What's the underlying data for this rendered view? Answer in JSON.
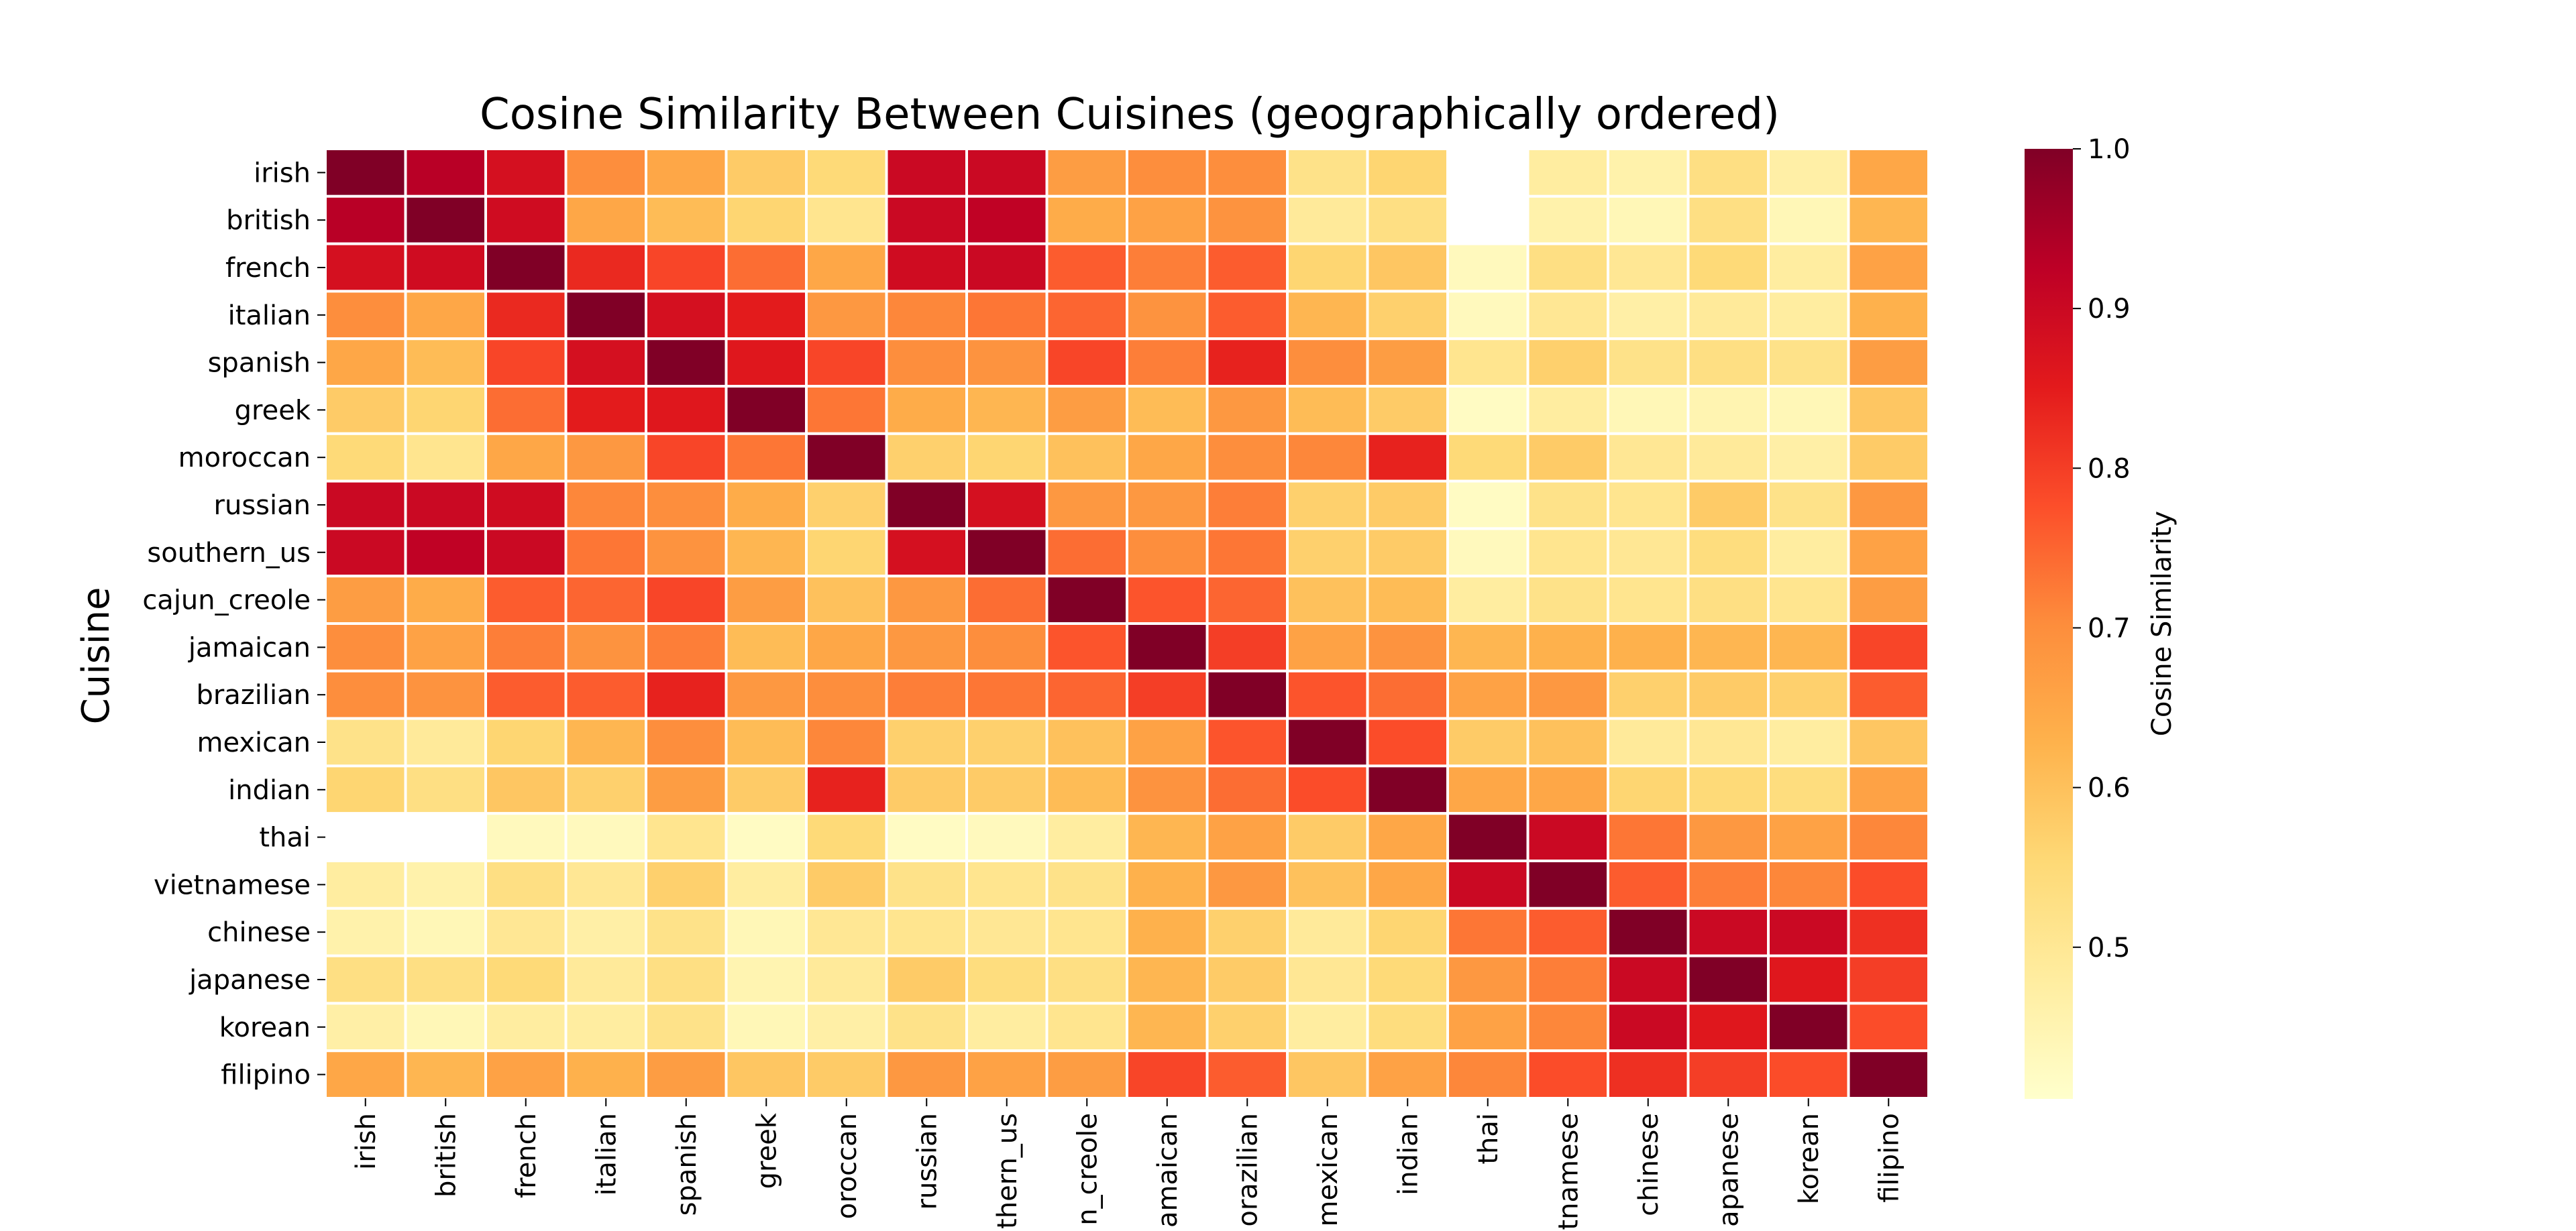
{
  "chart_data": {
    "type": "heatmap",
    "title": "Cosine Similarity Between Cuisines (geographically ordered)",
    "ylabel": "Cuisine",
    "xlabel": "",
    "categories": [
      "irish",
      "british",
      "french",
      "italian",
      "spanish",
      "greek",
      "moroccan",
      "russian",
      "southern_us",
      "cajun_creole",
      "jamaican",
      "brazilian",
      "mexican",
      "indian",
      "thai",
      "vietnamese",
      "chinese",
      "japanese",
      "korean",
      "filipino"
    ],
    "x_tick_labels_visible": [
      "irish",
      "british",
      "french",
      "italian",
      "spanish",
      "greek",
      "oroccan",
      "russian",
      "thern_us",
      "n_creole",
      "amaican",
      "orazilian",
      "mexican",
      "indian",
      "thai",
      "tnamese",
      "chinese",
      "apanese",
      "korean",
      "filipino"
    ],
    "values": [
      [
        1.0,
        0.93,
        0.88,
        0.7,
        0.65,
        0.58,
        0.55,
        0.9,
        0.9,
        0.67,
        0.7,
        0.7,
        0.52,
        0.56,
        null,
        0.48,
        0.46,
        0.53,
        0.47,
        0.65
      ],
      [
        0.93,
        1.0,
        0.89,
        0.65,
        0.61,
        0.56,
        0.51,
        0.9,
        0.92,
        0.64,
        0.66,
        0.69,
        0.49,
        0.53,
        null,
        0.46,
        0.44,
        0.53,
        0.44,
        0.62
      ],
      [
        0.88,
        0.89,
        1.0,
        0.83,
        0.79,
        0.74,
        0.65,
        0.89,
        0.9,
        0.76,
        0.72,
        0.76,
        0.56,
        0.59,
        0.43,
        0.53,
        0.5,
        0.55,
        0.48,
        0.66
      ],
      [
        0.7,
        0.65,
        0.83,
        1.0,
        0.88,
        0.85,
        0.68,
        0.71,
        0.73,
        0.75,
        0.69,
        0.76,
        0.62,
        0.57,
        0.43,
        0.5,
        0.47,
        0.49,
        0.48,
        0.63
      ],
      [
        0.65,
        0.61,
        0.79,
        0.88,
        1.0,
        0.86,
        0.79,
        0.7,
        0.69,
        0.79,
        0.72,
        0.84,
        0.7,
        0.67,
        0.51,
        0.57,
        0.52,
        0.53,
        0.52,
        0.67
      ],
      [
        0.58,
        0.56,
        0.74,
        0.85,
        0.86,
        1.0,
        0.73,
        0.64,
        0.62,
        0.67,
        0.61,
        0.68,
        0.61,
        0.58,
        0.42,
        0.48,
        0.44,
        0.45,
        0.44,
        0.59
      ],
      [
        0.55,
        0.51,
        0.65,
        0.68,
        0.79,
        0.73,
        1.0,
        0.57,
        0.56,
        0.6,
        0.65,
        0.7,
        0.71,
        0.84,
        0.55,
        0.58,
        0.5,
        0.49,
        0.47,
        0.58
      ],
      [
        0.9,
        0.9,
        0.89,
        0.71,
        0.7,
        0.64,
        0.57,
        1.0,
        0.88,
        0.68,
        0.68,
        0.72,
        0.57,
        0.58,
        0.42,
        0.52,
        0.51,
        0.58,
        0.52,
        0.68
      ],
      [
        0.9,
        0.92,
        0.9,
        0.73,
        0.69,
        0.62,
        0.56,
        0.88,
        1.0,
        0.74,
        0.7,
        0.73,
        0.57,
        0.58,
        0.43,
        0.51,
        0.5,
        0.54,
        0.48,
        0.66
      ],
      [
        0.67,
        0.64,
        0.76,
        0.75,
        0.79,
        0.67,
        0.6,
        0.68,
        0.74,
        1.0,
        0.77,
        0.75,
        0.6,
        0.61,
        0.48,
        0.52,
        0.51,
        0.53,
        0.51,
        0.67
      ],
      [
        0.7,
        0.66,
        0.72,
        0.69,
        0.72,
        0.61,
        0.65,
        0.68,
        0.7,
        0.77,
        1.0,
        0.8,
        0.66,
        0.69,
        0.62,
        0.63,
        0.63,
        0.62,
        0.62,
        0.79
      ],
      [
        0.7,
        0.69,
        0.76,
        0.76,
        0.84,
        0.68,
        0.7,
        0.72,
        0.73,
        0.75,
        0.8,
        1.0,
        0.77,
        0.74,
        0.66,
        0.68,
        0.57,
        0.58,
        0.57,
        0.76
      ],
      [
        0.52,
        0.49,
        0.56,
        0.62,
        0.7,
        0.61,
        0.71,
        0.57,
        0.57,
        0.6,
        0.66,
        0.77,
        1.0,
        0.78,
        0.58,
        0.6,
        0.49,
        0.5,
        0.48,
        0.59
      ],
      [
        0.56,
        0.53,
        0.59,
        0.57,
        0.67,
        0.58,
        0.84,
        0.58,
        0.58,
        0.61,
        0.69,
        0.74,
        0.78,
        1.0,
        0.65,
        0.65,
        0.56,
        0.55,
        0.54,
        0.66
      ],
      [
        null,
        null,
        0.43,
        0.43,
        0.51,
        0.42,
        0.55,
        0.42,
        0.43,
        0.48,
        0.62,
        0.66,
        0.58,
        0.65,
        1.0,
        0.9,
        0.73,
        0.68,
        0.66,
        0.71
      ],
      [
        0.48,
        0.46,
        0.53,
        0.5,
        0.57,
        0.48,
        0.58,
        0.52,
        0.51,
        0.52,
        0.63,
        0.68,
        0.6,
        0.65,
        0.9,
        1.0,
        0.76,
        0.72,
        0.71,
        0.78
      ],
      [
        0.46,
        0.44,
        0.5,
        0.47,
        0.52,
        0.44,
        0.5,
        0.51,
        0.5,
        0.51,
        0.63,
        0.57,
        0.49,
        0.56,
        0.73,
        0.76,
        1.0,
        0.9,
        0.9,
        0.82
      ],
      [
        0.53,
        0.53,
        0.55,
        0.49,
        0.53,
        0.45,
        0.49,
        0.58,
        0.54,
        0.53,
        0.62,
        0.58,
        0.5,
        0.55,
        0.68,
        0.72,
        0.9,
        1.0,
        0.86,
        0.8
      ],
      [
        0.47,
        0.44,
        0.48,
        0.48,
        0.52,
        0.44,
        0.47,
        0.52,
        0.48,
        0.51,
        0.62,
        0.57,
        0.48,
        0.54,
        0.66,
        0.71,
        0.9,
        0.86,
        1.0,
        0.78
      ],
      [
        0.65,
        0.62,
        0.66,
        0.63,
        0.67,
        0.59,
        0.58,
        0.68,
        0.66,
        0.67,
        0.79,
        0.76,
        0.59,
        0.66,
        0.71,
        0.78,
        0.82,
        0.8,
        0.78,
        1.0
      ]
    ],
    "color_range": [
      0.405,
      1.0
    ],
    "colormap": "YlOrRd",
    "colorbar": {
      "label": "Cosine Similarity",
      "ticks": [
        0.5,
        0.6,
        0.7,
        0.8,
        0.9,
        1.0
      ],
      "tick_labels": [
        "0.5",
        "0.6",
        "0.7",
        "0.8",
        "0.9",
        "1.0"
      ]
    },
    "cell_border_color": "#ffffff"
  }
}
